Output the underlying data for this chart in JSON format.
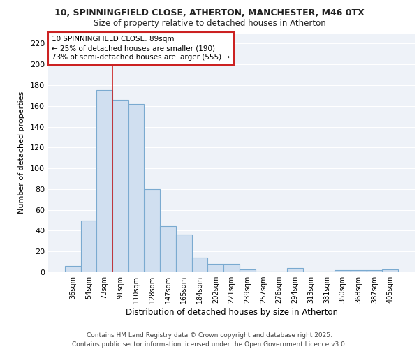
{
  "title_line1": "10, SPINNINGFIELD CLOSE, ATHERTON, MANCHESTER, M46 0TX",
  "title_line2": "Size of property relative to detached houses in Atherton",
  "xlabel": "Distribution of detached houses by size in Atherton",
  "ylabel": "Number of detached properties",
  "categories": [
    "36sqm",
    "54sqm",
    "73sqm",
    "91sqm",
    "110sqm",
    "128sqm",
    "147sqm",
    "165sqm",
    "184sqm",
    "202sqm",
    "221sqm",
    "239sqm",
    "257sqm",
    "276sqm",
    "294sqm",
    "313sqm",
    "331sqm",
    "350sqm",
    "368sqm",
    "387sqm",
    "405sqm"
  ],
  "values": [
    6,
    50,
    175,
    166,
    162,
    80,
    44,
    36,
    14,
    8,
    8,
    3,
    1,
    1,
    4,
    1,
    1,
    2,
    2,
    2,
    3
  ],
  "bar_color": "#d0dff0",
  "bar_edge_color": "#7aaad0",
  "annotation_box_text": "10 SPINNINGFIELD CLOSE: 89sqm\n← 25% of detached houses are smaller (190)\n73% of semi-detached houses are larger (555) →",
  "annotation_box_color": "#ffffff",
  "annotation_box_edge_color": "#cc2222",
  "ylim": [
    0,
    230
  ],
  "yticks": [
    0,
    20,
    40,
    60,
    80,
    100,
    120,
    140,
    160,
    180,
    200,
    220
  ],
  "footer_line1": "Contains HM Land Registry data © Crown copyright and database right 2025.",
  "footer_line2": "Contains public sector information licensed under the Open Government Licence v3.0.",
  "bg_color": "#ffffff",
  "plot_bg_color": "#eef2f8",
  "grid_color": "#ffffff",
  "vertical_line_color": "#cc2222",
  "vertical_line_x": 3.5
}
